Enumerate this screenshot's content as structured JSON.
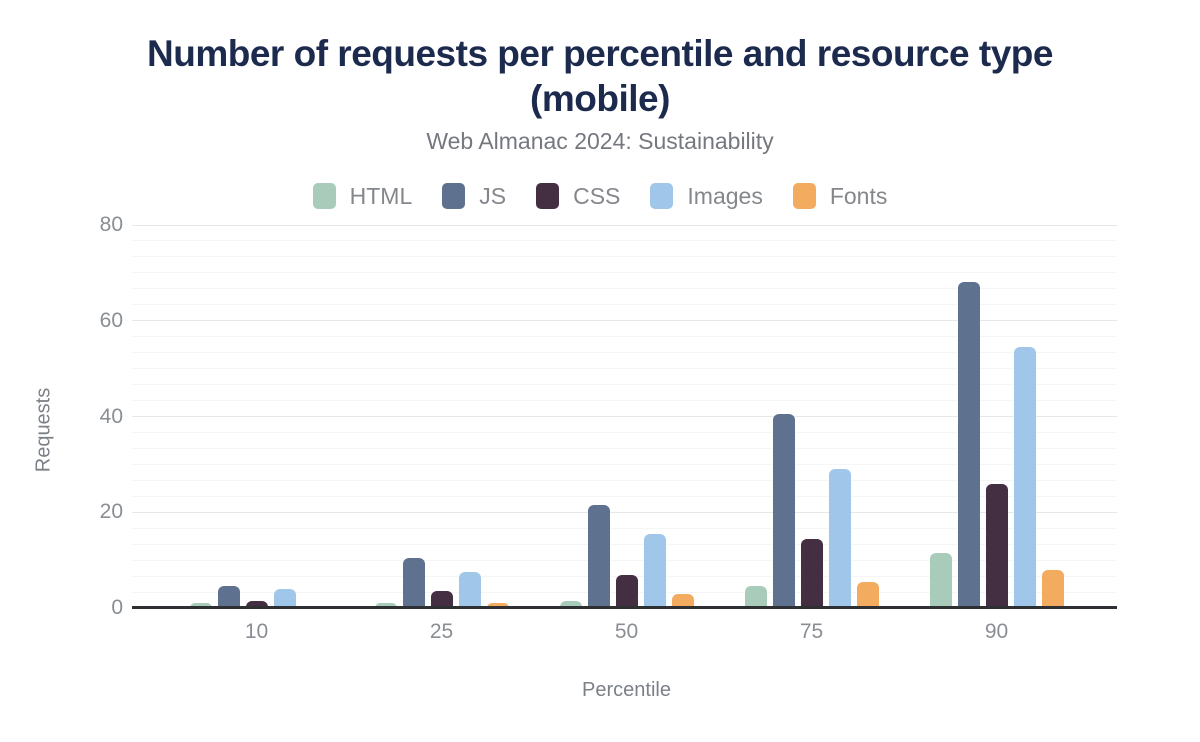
{
  "title": "Number of requests per percentile and resource type (mobile)",
  "subtitle": "Web Almanac 2024: Sustainability",
  "chart_data": {
    "type": "bar",
    "title": "Number of requests per percentile and resource type (mobile)",
    "subtitle": "Web Almanac 2024: Sustainability",
    "xlabel": "Percentile",
    "ylabel": "Requests",
    "categories": [
      "10",
      "25",
      "50",
      "75",
      "90"
    ],
    "series": [
      {
        "name": "HTML",
        "color": "#a9cbb9",
        "values": [
          1,
          1,
          1.5,
          4.5,
          11.5
        ]
      },
      {
        "name": "JS",
        "color": "#5e718f",
        "values": [
          4.5,
          10.5,
          21.5,
          40.5,
          68
        ]
      },
      {
        "name": "CSS",
        "color": "#442e41",
        "values": [
          1.5,
          3.5,
          7,
          14.5,
          26
        ]
      },
      {
        "name": "Images",
        "color": "#a0c7e9",
        "values": [
          4,
          7.5,
          15.5,
          29,
          54.5
        ]
      },
      {
        "name": "Fonts",
        "color": "#f3ab60",
        "values": [
          0,
          1,
          3,
          5.5,
          8
        ]
      }
    ],
    "ylim": [
      0,
      80
    ],
    "yticks": [
      0,
      20,
      40,
      60,
      80
    ],
    "minor_gridlines_per_major_interval": 5,
    "grid": true,
    "legend_position": "top"
  },
  "colors": {
    "title": "#1c2a4e",
    "subtitle": "#75787f",
    "tick_label": "#8a8e94",
    "axis_title": "#7c8087",
    "axis_line": "#2f3033",
    "gridline_major": "#e7e7e7",
    "gridline_minor": "#f5f5f5",
    "background": "#ffffff"
  }
}
